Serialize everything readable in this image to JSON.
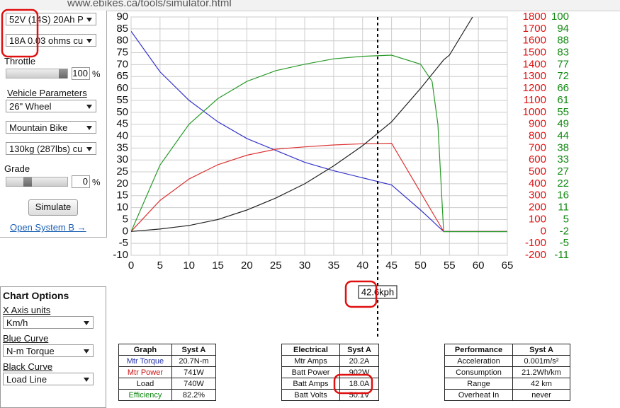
{
  "browser": {
    "url": "www.ebikes.ca/tools/simulator.html"
  },
  "controls": {
    "battery": "52V (14S) 20Ah P",
    "controller": "18A 0.03 ohms cu",
    "throttle_label": "Throttle",
    "throttle_value": "100",
    "percent": "%",
    "vehicle_title": "Vehicle Parameters",
    "wheel": "26\"  Wheel",
    "bike": "Mountain Bike",
    "weight": "130kg (287lbs) cu",
    "grade_label": "Grade",
    "grade_value": "0",
    "simulate": "Simulate",
    "system_b": "Open System B →"
  },
  "chart_options": {
    "title": "Chart Options",
    "x_label": "X Axis units",
    "x_value": "Km/h",
    "blue_label": "Blue Curve",
    "blue_value": "N-m Torque",
    "black_label": "Black Curve",
    "black_value": "Load Line"
  },
  "chart_data": {
    "type": "line",
    "x": [
      0,
      5,
      10,
      15,
      20,
      25,
      30,
      35,
      40,
      45,
      50,
      52,
      53,
      54,
      55,
      59,
      60,
      65
    ],
    "xlim": [
      0,
      65
    ],
    "xticks": [
      0,
      5,
      10,
      15,
      20,
      25,
      30,
      35,
      40,
      45,
      50,
      55,
      60,
      65
    ],
    "ylim": [
      -10,
      90
    ],
    "yticks": [
      -10,
      -5,
      0,
      5,
      10,
      15,
      20,
      25,
      30,
      35,
      40,
      45,
      50,
      55,
      60,
      65,
      70,
      75,
      80,
      85,
      90
    ],
    "y2lim": [
      -200,
      1800
    ],
    "y2ticks": [
      -200,
      -100,
      0,
      100,
      200,
      300,
      400,
      500,
      600,
      700,
      800,
      900,
      1000,
      1100,
      1200,
      1300,
      1400,
      1500,
      1600,
      1700,
      1800
    ],
    "y2color": "#dd1111",
    "y3lim": [
      -11,
      100
    ],
    "y3ticks": [
      -11,
      -5,
      -2,
      5,
      11,
      16,
      22,
      27,
      33,
      38,
      44,
      49,
      55,
      61,
      66,
      72,
      77,
      83,
      88,
      94,
      100
    ],
    "y3color": "#118811",
    "grid": true,
    "series": [
      {
        "color": "#3333cc",
        "axis": "y",
        "values": [
          84,
          67,
          55,
          46,
          39,
          34,
          29,
          25.5,
          22.5,
          19.5,
          9,
          4.5,
          2.2,
          0,
          0,
          0,
          0,
          0
        ]
      },
      {
        "color": "#dd3333",
        "axis": "y2",
        "values": [
          0,
          260,
          440,
          560,
          640,
          690,
          710,
          726,
          736,
          740,
          329,
          164,
          82,
          0,
          0,
          0,
          0,
          0
        ]
      },
      {
        "color": "#2a9a2a",
        "axis": "y3",
        "values": [
          0,
          31,
          50,
          62,
          70,
          75,
          78,
          80.5,
          81.7,
          82.2,
          78,
          70,
          50,
          0,
          0,
          0,
          0,
          0
        ]
      },
      {
        "color": "#222222",
        "axis": "y2",
        "values": [
          0,
          20,
          50,
          100,
          180,
          280,
          400,
          550,
          720,
          920,
          1200,
          1320,
          1380,
          1440,
          1480,
          1800,
          null,
          null
        ]
      }
    ],
    "marker": {
      "x": 42.6,
      "label": "42.6kph"
    }
  },
  "tables": [
    {
      "header": [
        "Graph",
        "Syst A"
      ],
      "rows": [
        [
          "Mtr Torque",
          "20.7N-m"
        ],
        [
          "Mtr Power",
          "741W"
        ],
        [
          "Load",
          "740W"
        ],
        [
          "Efficiency",
          "82.2%"
        ]
      ]
    },
    {
      "header": [
        "Electrical",
        "Syst A"
      ],
      "rows": [
        [
          "Mtr Amps",
          "20.2A"
        ],
        [
          "Batt Power",
          "902W"
        ],
        [
          "Batt Amps",
          "18.0A"
        ],
        [
          "Batt Volts",
          "50.1V"
        ]
      ]
    },
    {
      "header": [
        "Performance",
        "Syst A"
      ],
      "rows": [
        [
          "Acceleration",
          "0.001m/s²"
        ],
        [
          "Consumption",
          "21.2Wh/km"
        ],
        [
          "Range",
          "42 km"
        ],
        [
          "Overheat In",
          "never"
        ]
      ]
    }
  ]
}
